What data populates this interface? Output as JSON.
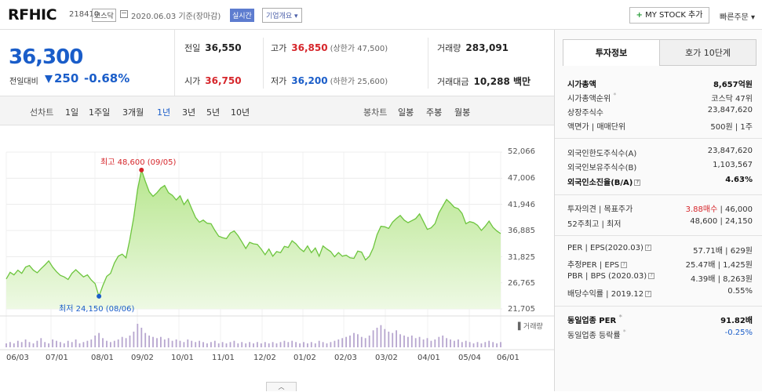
{
  "header": {
    "ticker": "RFHIC",
    "code": "218410",
    "market": "코스닥",
    "date_text": "2020.06.03  기준(장마감)",
    "realtime": "실시간",
    "corp_overview": "기업개요 ▾",
    "mystock_plus": "+",
    "mystock": "MY STOCK 추가",
    "quick_order": "빠른주문 ▾"
  },
  "price": {
    "current": "36,300",
    "change_label": "전일대비",
    "change": "250",
    "change_pct": "-0.68%"
  },
  "stats": {
    "prev_close_label": "전일",
    "prev_close": "36,550",
    "high_label": "고가",
    "high": "36,850",
    "upper_limit": "(상한가 47,500)",
    "volume_label": "거래량",
    "volume": "283,091",
    "open_label": "시가",
    "open": "36,750",
    "low_label": "저가",
    "low": "36,200",
    "lower_limit": "(하한가 25,600)",
    "amount_label": "거래대금",
    "amount": "10,288 백만"
  },
  "periods": {
    "candle_label": "선차트",
    "items": [
      "1일",
      "1주일",
      "3개월",
      "1년",
      "3년",
      "5년",
      "10년"
    ],
    "selected": "1년",
    "bong_label": "봉차트",
    "bong_items": [
      "일봉",
      "주봉",
      "월봉"
    ]
  },
  "chart_data": {
    "type": "area",
    "y_ticks": [
      "52,066",
      "47,006",
      "41,946",
      "36,885",
      "31,825",
      "26,765",
      "21,705"
    ],
    "ylim": [
      21705,
      52066
    ],
    "x_ticks": [
      "06/03",
      "07/01",
      "08/01",
      "09/02",
      "10/01",
      "11/01",
      "12/02",
      "01/02",
      "02/03",
      "03/02",
      "04/01",
      "05/04",
      "06/01"
    ],
    "high_label": "최고 48,600 (09/05)",
    "low_label": "최저 24,150 (08/06)",
    "volume_label": "▌거래량",
    "series": [
      {
        "values": [
          27500,
          28800,
          28300,
          29200,
          28600,
          29800,
          30100,
          29200,
          28700,
          29500,
          30200,
          31000,
          29800,
          28900,
          28200,
          27900,
          27400,
          28600,
          29300,
          28600,
          27900,
          28300,
          27300,
          26600,
          24150,
          26200,
          28000,
          28600,
          30600,
          31900,
          32300,
          31600,
          35200,
          39400,
          44800,
          48600,
          46400,
          44400,
          43500,
          44200,
          45100,
          45600,
          44200,
          43700,
          42800,
          43600,
          41900,
          42900,
          41100,
          39400,
          38500,
          38900,
          38300,
          38200,
          36900,
          35800,
          35500,
          35300,
          36400,
          36800,
          35900,
          34700,
          33400,
          34600,
          34300,
          34200,
          33300,
          32200,
          33300,
          31900,
          32800,
          32600,
          33800,
          33600,
          34900,
          34300,
          33400,
          32800,
          33900,
          32600,
          33500,
          31900,
          33900,
          33300,
          32800,
          31800,
          32600,
          31900,
          32100,
          31600,
          31500,
          32900,
          32700,
          31200,
          31900,
          33500,
          36100,
          37700,
          37600,
          37300,
          38500,
          39200,
          39800,
          38900,
          38400,
          38800,
          39200,
          40100,
          38600,
          37100,
          37400,
          38200,
          40300,
          41600,
          42900,
          42200,
          41400,
          41100,
          40200,
          38200,
          38600,
          38400,
          37900,
          36900,
          37700,
          38700,
          37500,
          36800,
          36300
        ]
      }
    ],
    "volumes": [
      3,
      4,
      3,
      5,
      4,
      6,
      4,
      3,
      5,
      7,
      4,
      3,
      6,
      5,
      4,
      3,
      5,
      4,
      6,
      3,
      4,
      5,
      6,
      9,
      11,
      7,
      5,
      4,
      5,
      6,
      8,
      7,
      9,
      12,
      18,
      15,
      11,
      9,
      8,
      7,
      8,
      6,
      7,
      5,
      6,
      5,
      4,
      6,
      5,
      4,
      5,
      4,
      3,
      4,
      5,
      3,
      4,
      3,
      4,
      5,
      3,
      4,
      3,
      4,
      3,
      4,
      3,
      4,
      3,
      4,
      3,
      4,
      5,
      4,
      5,
      4,
      3,
      4,
      3,
      4,
      3,
      5,
      4,
      3,
      4,
      5,
      6,
      7,
      8,
      9,
      11,
      10,
      8,
      7,
      9,
      13,
      15,
      17,
      14,
      12,
      11,
      13,
      10,
      9,
      8,
      9,
      7,
      8,
      6,
      7,
      5,
      6,
      8,
      9,
      7,
      6,
      5,
      6,
      4,
      5,
      4,
      3,
      4,
      3,
      4,
      5,
      4,
      3,
      4
    ]
  },
  "collapse_glyph": "︿",
  "side": {
    "tab_active": "투자정보",
    "tab_inactive": "호가 10단계",
    "market_cap_label": "시가총액",
    "market_cap": "8,657억원",
    "cap_rank_label": "시가총액순위",
    "cap_rank": "코스닥 47위",
    "shares_label": "상장주식수",
    "shares": "23,847,620",
    "par_label": "액면가 | 매매단위",
    "par": "500원 | 1주",
    "foreign_limit_label": "외국인한도주식수(A)",
    "foreign_limit": "23,847,620",
    "foreign_hold_label": "외국인보유주식수(B)",
    "foreign_hold": "1,103,567",
    "foreign_ratio_label": "외국인소진율(B/A)",
    "foreign_ratio": "4.63%",
    "opinion_label": "투자의견 | 목표주가",
    "opinion": "3.88매수",
    "target": " | 46,000",
    "week52_label": "52주최고 | 최저",
    "week52": "48,600 | 24,150",
    "per_label": "PER | EPS(2020.03)",
    "per": "57.71배 | 629원",
    "est_per_label": "추정PER | EPS",
    "est_per": "25.47배 | 1,425원",
    "pbr_label": "PBR | BPS (2020.03)",
    "pbr": "4.39배 | 8,263원",
    "div_label": "배당수익률 | 2019.12",
    "div": "0.55%",
    "sector_per_label": "동일업종 PER",
    "sector_per": "91.82배",
    "sector_rate_label": "동일업종 등락률",
    "sector_rate": "-0.25%",
    "q_glyph": "?",
    "dot_glyph": "*"
  }
}
